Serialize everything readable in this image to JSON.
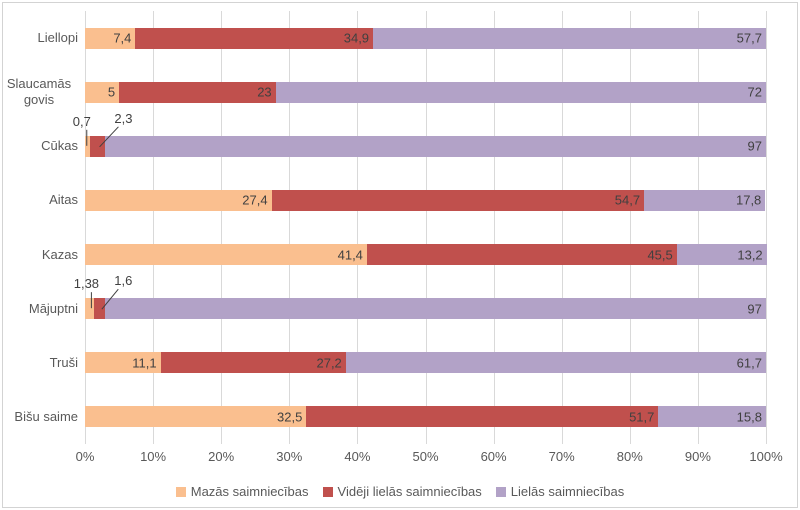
{
  "chart_data": {
    "type": "bar",
    "orientation": "horizontal",
    "stacked": true,
    "percent_scale": true,
    "title": "",
    "xlabel": "",
    "ylabel": "",
    "grid": true,
    "legend_position": "bottom",
    "categories": [
      "Liellopi",
      "Slaucamās govis",
      "Cūkas",
      "Aitas",
      "Kazas",
      "Mājuptni",
      "Truši",
      "Bišu saime"
    ],
    "multiline_category_index": 1,
    "series": [
      {
        "name": "Mazās saimniecības",
        "color": "#FABF8F",
        "values": [
          7.4,
          5,
          0.7,
          27.4,
          41.4,
          1.38,
          11.1,
          32.5
        ],
        "labels": [
          "7,4",
          "5",
          "0,7",
          "27,4",
          "41,4",
          "1,38",
          "11,1",
          "32,5"
        ]
      },
      {
        "name": "Vidēji lielās saimniecības",
        "color": "#C0504D",
        "values": [
          34.9,
          23,
          2.3,
          54.7,
          45.5,
          1.6,
          27.2,
          51.7
        ],
        "labels": [
          "34,9",
          "23",
          "2,3",
          "54,7",
          "45,5",
          "1,6",
          "27,2",
          "51,7"
        ]
      },
      {
        "name": "Lielās saimniecības",
        "color": "#B2A2C7",
        "values": [
          57.7,
          72,
          97,
          17.8,
          13.2,
          97,
          61.7,
          15.8
        ],
        "labels": [
          "57,7",
          "72",
          "97",
          "17,8",
          "13,2",
          "97",
          "61,7",
          "15,8"
        ]
      }
    ],
    "x_axis": {
      "min": 0,
      "max": 100,
      "ticks": [
        "0%",
        "10%",
        "20%",
        "30%",
        "40%",
        "50%",
        "60%",
        "70%",
        "80%",
        "90%",
        "100%"
      ]
    },
    "callout_segments": [
      [
        2,
        0
      ],
      [
        2,
        1
      ],
      [
        5,
        0
      ],
      [
        5,
        1
      ]
    ]
  },
  "colors": {
    "gridline": "#D9D9D9",
    "axis_text": "#595959",
    "data_label_text": "#404040",
    "leader_line": "#404040",
    "chart_border": "#D3D3D3",
    "background": "#FFFFFF"
  }
}
